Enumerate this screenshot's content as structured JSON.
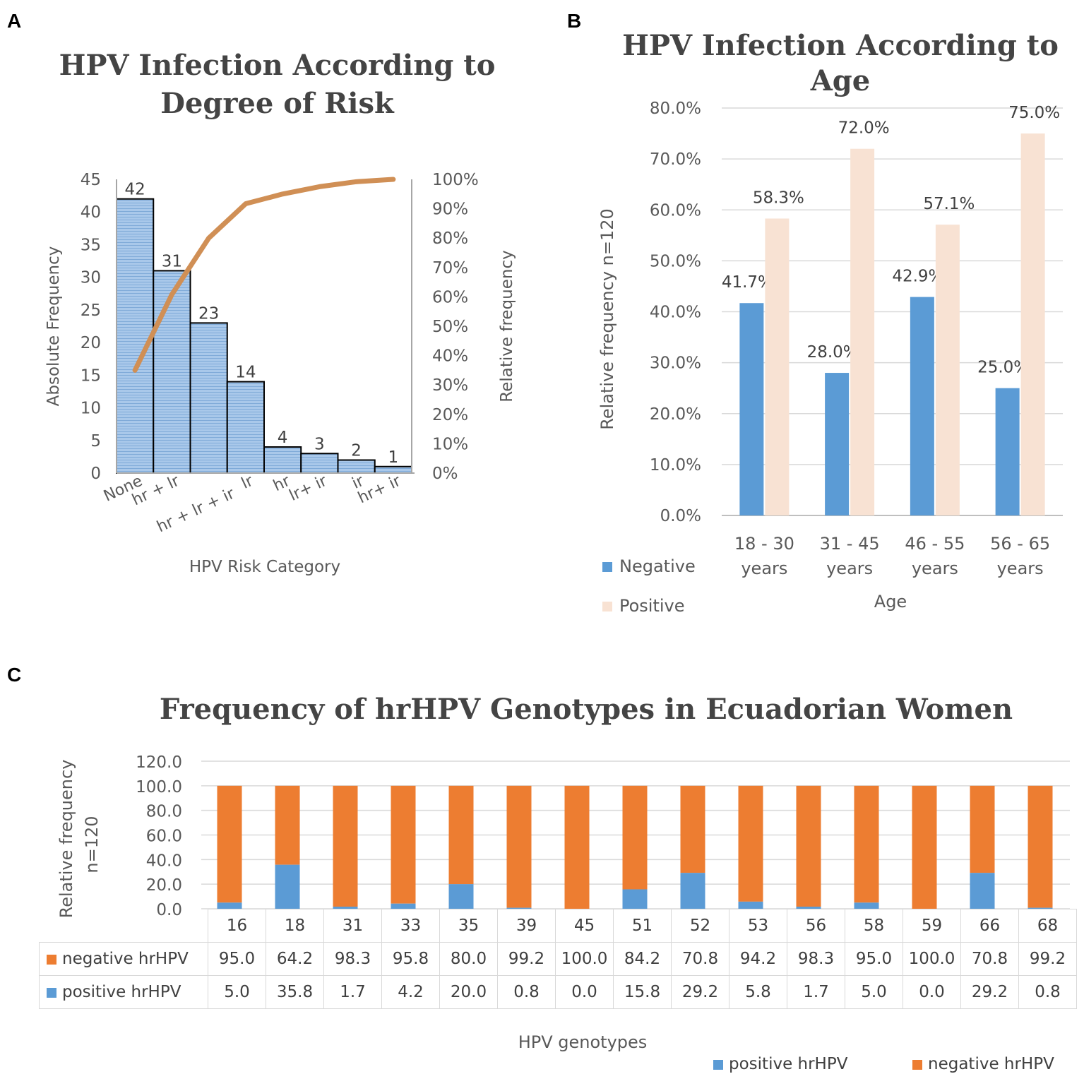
{
  "panels": {
    "a": "A",
    "b": "B",
    "c": "C"
  },
  "colors": {
    "bar_a": "#a9c8ea",
    "pareto_line": "#d08f55",
    "negative_b": "#5b9bd5",
    "positive_b": "#f8e2d3",
    "negative_c": "#ed7d31",
    "positive_c": "#5b9bd5"
  },
  "chart_data": [
    {
      "id": "A",
      "type": "bar",
      "title": "HPV Infection According to Degree of Risk",
      "title_lines": [
        "HPV Infection According to",
        "Degree of Risk"
      ],
      "categories": [
        "None",
        "hr + lr",
        "hr + lr + ir",
        "lr",
        "hr",
        "lr+ ir",
        "ir",
        "hr+ ir"
      ],
      "values": [
        42,
        31,
        23,
        14,
        4,
        3,
        2,
        1
      ],
      "data_labels": [
        "42",
        "31",
        "23",
        "14",
        "4",
        "3",
        "2",
        "1"
      ],
      "cumulative_percent": [
        35,
        60.8,
        80,
        91.7,
        95,
        97.5,
        99.2,
        100
      ],
      "xlabel": "HPV Risk Category",
      "ylabel": "Absolute Frequency",
      "y2label": "Relative frequency",
      "ylim": [
        0,
        45
      ],
      "y_ticks": [
        "0",
        "5",
        "10",
        "15",
        "20",
        "25",
        "30",
        "35",
        "40",
        "45"
      ],
      "y2lim": [
        0,
        100
      ],
      "y2_ticks": [
        "0%",
        "10%",
        "20%",
        "30%",
        "40%",
        "50%",
        "60%",
        "70%",
        "80%",
        "90%",
        "100%"
      ]
    },
    {
      "id": "B",
      "type": "bar",
      "title": "HPV Infection According to Age",
      "categories": [
        [
          "18 - 30",
          "years"
        ],
        [
          "31 - 45",
          "years"
        ],
        [
          "46 - 55",
          "years"
        ],
        [
          "56 - 65",
          "years"
        ]
      ],
      "series": [
        {
          "name": "Negative",
          "values": [
            41.7,
            28.0,
            42.9,
            25.0
          ],
          "labels": [
            "41.7%",
            "28.0%",
            "42.9%",
            "25.0%"
          ]
        },
        {
          "name": "Positive",
          "values": [
            58.3,
            72.0,
            57.1,
            75.0
          ],
          "labels": [
            "58.3%",
            "72.0%",
            "57.1%",
            "75.0%"
          ]
        }
      ],
      "xlabel": "Age",
      "ylabel": "Relative frequency n=120",
      "ylim": [
        0,
        80
      ],
      "y_ticks": [
        "0.0%",
        "10.0%",
        "20.0%",
        "30.0%",
        "40.0%",
        "50.0%",
        "60.0%",
        "70.0%",
        "80.0%"
      ],
      "legend": [
        "Negative",
        "Positive"
      ],
      "grid": true
    },
    {
      "id": "C",
      "type": "bar",
      "stacked": true,
      "title": "Frequency of hrHPV Genotypes in Ecuadorian Women",
      "categories": [
        "16",
        "18",
        "31",
        "33",
        "35",
        "39",
        "45",
        "51",
        "52",
        "53",
        "56",
        "58",
        "59",
        "66",
        "68"
      ],
      "series": [
        {
          "name": "positive hrHPV",
          "values": [
            5.0,
            35.8,
            1.7,
            4.2,
            20.0,
            0.8,
            0.0,
            15.8,
            29.2,
            5.8,
            1.7,
            5.0,
            0.0,
            29.2,
            0.8
          ],
          "labels": [
            "5.0",
            "35.8",
            "1.7",
            "4.2",
            "20.0",
            "0.8",
            "0.0",
            "15.8",
            "29.2",
            "5.8",
            "1.7",
            "5.0",
            "0.0",
            "29.2",
            "0.8"
          ]
        },
        {
          "name": "negative hrHPV",
          "values": [
            95.0,
            64.2,
            98.3,
            95.8,
            80.0,
            99.2,
            100.0,
            84.2,
            70.8,
            94.2,
            98.3,
            95.0,
            100.0,
            70.8,
            99.2
          ],
          "labels": [
            "95.0",
            "64.2",
            "98.3",
            "95.8",
            "80.0",
            "99.2",
            "100.0",
            "84.2",
            "70.8",
            "94.2",
            "98.3",
            "95.0",
            "100.0",
            "70.8",
            "99.2"
          ]
        }
      ],
      "xlabel": "HPV genotypes",
      "ylabel_lines": [
        "Relative frequency",
        "n=120"
      ],
      "ylim": [
        0,
        120
      ],
      "y_ticks": [
        "0.0",
        "20.0",
        "40.0",
        "60.0",
        "80.0",
        "100.0",
        "120.0"
      ],
      "legend": [
        "positive hrHPV",
        "negative hrHPV"
      ],
      "table_rows": [
        "negative hrHPV",
        "positive hrHPV"
      ],
      "grid": true
    }
  ]
}
